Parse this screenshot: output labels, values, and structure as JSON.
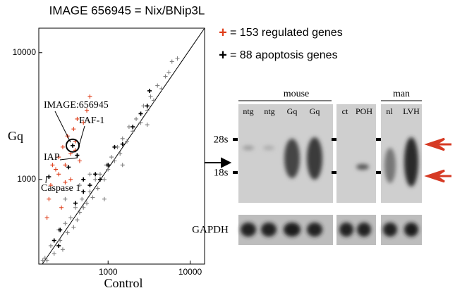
{
  "chart_data": {
    "type": "scatter",
    "title": "IMAGE 656945 = Nix/BNip3L",
    "x_label": "Control",
    "y_label": "Gq",
    "log_x": true,
    "log_y": true,
    "xlim": [
      143,
      15000
    ],
    "ylim": [
      215,
      15600
    ],
    "xticks": [
      1000,
      10000
    ],
    "yticks": [
      1000,
      10000
    ],
    "legend": [
      {
        "symbol": "+",
        "color": "#e0401c",
        "text": "= 153 regulated genes"
      },
      {
        "symbol": "+",
        "color": "#000000",
        "text": "= 88 apoptosis genes"
      }
    ],
    "annotations": [
      "IMAGE:656945",
      "FAF-1",
      "IAP",
      "Caspase 1"
    ],
    "series": [
      {
        "color": "#808080",
        "x": [
          200,
          220,
          250,
          260,
          280,
          300,
          320,
          350,
          380,
          400,
          420,
          450,
          480,
          500,
          550,
          600,
          650,
          700,
          750,
          800,
          900,
          950,
          1000,
          1100,
          1200,
          1300,
          1400,
          1500,
          1700,
          1800,
          2000,
          2200,
          2500,
          2700,
          3000,
          3300,
          3600,
          4000,
          4500,
          5000,
          5500,
          6000,
          7000,
          300,
          450,
          600,
          180,
          160,
          170,
          900,
          1500,
          3000
        ],
        "values": [
          300,
          260,
          400,
          330,
          280,
          450,
          380,
          500,
          420,
          600,
          480,
          550,
          700,
          600,
          650,
          800,
          720,
          1000,
          850,
          1100,
          1000,
          1300,
          1200,
          1500,
          1400,
          1800,
          1600,
          2100,
          2000,
          2600,
          2400,
          3000,
          2800,
          3800,
          3500,
          4500,
          4200,
          5500,
          5200,
          6500,
          7000,
          8500,
          9000,
          700,
          900,
          1100,
          230,
          230,
          240,
          700,
          1300,
          2700
        ]
      },
      {
        "color": "#e0401c",
        "x": [
          200,
          190,
          230,
          250,
          280,
          300,
          320,
          350,
          380,
          400,
          420,
          450,
          250,
          300,
          500,
          550,
          180,
          270,
          600,
          350,
          210,
          400
        ],
        "values": [
          900,
          700,
          1200,
          1500,
          1800,
          1300,
          2200,
          1600,
          2500,
          2000,
          3000,
          1400,
          1100,
          950,
          2800,
          3500,
          500,
          600,
          4500,
          1000,
          1300,
          1700
        ]
      },
      {
        "color": "#000000",
        "x": [
          370,
          420,
          330,
          190,
          260,
          400,
          500,
          600,
          700,
          800,
          1000,
          1200,
          1500,
          2000,
          2500,
          3000,
          220,
          250,
          3200,
          500
        ],
        "values": [
          1850,
          1550,
          1250,
          1050,
          400,
          650,
          800,
          900,
          1100,
          1000,
          1300,
          1800,
          1900,
          2600,
          3300,
          3800,
          330,
          300,
          5000,
          1000
        ]
      }
    ]
  },
  "blot": {
    "groups": [
      "mouse",
      "man"
    ],
    "lanes": [
      "ntg",
      "ntg",
      "Gq",
      "Gq",
      "ct",
      "POH",
      "nl",
      "LVH"
    ],
    "markers": [
      "28s",
      "18s"
    ],
    "loading_control": "GAPDH"
  }
}
